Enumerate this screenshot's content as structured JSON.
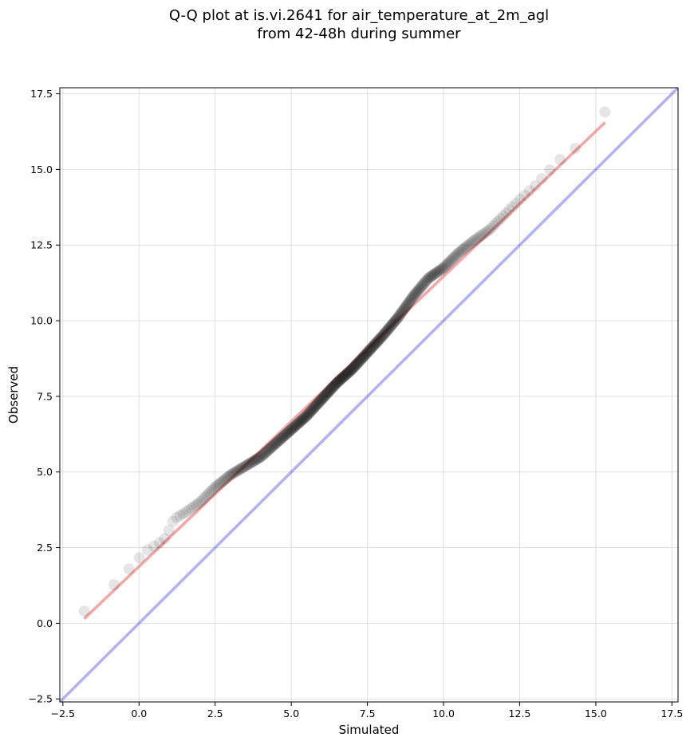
{
  "chart_data": {
    "type": "scatter",
    "title": [
      "Q-Q plot at is.vi.2641 for air_temperature_at_2m_agl",
      "from 42-48h during summer"
    ],
    "xlabel": "Simulated",
    "ylabel": "Observed",
    "xlim": [
      -2.6,
      17.7
    ],
    "ylim": [
      -2.6,
      17.7
    ],
    "xticks": [
      -2.5,
      0.0,
      2.5,
      5.0,
      7.5,
      10.0,
      12.5,
      15.0,
      17.5
    ],
    "yticks": [
      -2.5,
      0.0,
      2.5,
      5.0,
      7.5,
      10.0,
      12.5,
      15.0,
      17.5
    ],
    "xtick_labels": [
      "−2.5",
      "0.0",
      "2.5",
      "5.0",
      "7.5",
      "10.0",
      "12.5",
      "15.0",
      "17.5"
    ],
    "ytick_labels": [
      "−2.5",
      "0.0",
      "2.5",
      "5.0",
      "7.5",
      "10.0",
      "12.5",
      "15.0",
      "17.5"
    ],
    "grid": true,
    "colors": {
      "points": "#000000",
      "fit_line": "#e53935",
      "identity_line": "#3b3bf0",
      "grid": "#cccccc"
    },
    "quantile_curve": [
      [
        -1.8,
        0.4
      ],
      [
        -1.6,
        0.45
      ],
      [
        -1.3,
        0.7
      ],
      [
        -1.0,
        1.05
      ],
      [
        -0.8,
        1.3
      ],
      [
        -0.5,
        1.6
      ],
      [
        -0.2,
        1.95
      ],
      [
        0.0,
        2.15
      ],
      [
        0.3,
        2.45
      ],
      [
        0.6,
        2.6
      ],
      [
        0.85,
        2.8
      ],
      [
        1.0,
        3.1
      ],
      [
        1.15,
        3.45
      ],
      [
        1.5,
        3.65
      ],
      [
        2.0,
        4.0
      ],
      [
        2.5,
        4.5
      ],
      [
        3.0,
        4.9
      ],
      [
        3.5,
        5.2
      ],
      [
        4.0,
        5.5
      ],
      [
        4.5,
        5.95
      ],
      [
        5.0,
        6.4
      ],
      [
        5.5,
        6.85
      ],
      [
        6.0,
        7.4
      ],
      [
        6.5,
        7.95
      ],
      [
        7.0,
        8.4
      ],
      [
        7.5,
        8.95
      ],
      [
        8.0,
        9.5
      ],
      [
        8.5,
        10.1
      ],
      [
        9.0,
        10.8
      ],
      [
        9.5,
        11.4
      ],
      [
        10.0,
        11.75
      ],
      [
        10.5,
        12.25
      ],
      [
        11.0,
        12.65
      ],
      [
        11.5,
        13.0
      ],
      [
        12.0,
        13.5
      ],
      [
        12.5,
        14.0
      ],
      [
        13.0,
        14.45
      ],
      [
        13.5,
        15.0
      ],
      [
        14.0,
        15.5
      ],
      [
        14.5,
        15.8
      ],
      [
        15.0,
        16.1
      ],
      [
        15.3,
        16.9
      ]
    ],
    "fit_line": {
      "x": [
        -1.8,
        15.3
      ],
      "y": [
        0.15,
        16.55
      ]
    },
    "identity_line": {
      "x": [
        -2.6,
        17.7
      ],
      "y": [
        -2.6,
        17.7
      ]
    }
  }
}
